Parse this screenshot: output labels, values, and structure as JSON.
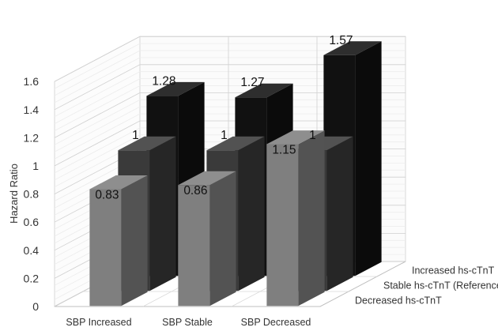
{
  "chart_data": {
    "type": "bar",
    "subtype": "3d-grouped-bar",
    "title": "",
    "xlabel": "",
    "ylabel": "Hazard Ratio",
    "ylim": [
      0,
      1.6
    ],
    "yticks": [
      "0",
      "0.2",
      "0.4",
      "0.6",
      "0.8",
      "1",
      "1.2",
      "1.4",
      "1.6"
    ],
    "grid": true,
    "categories": [
      "SBP Increased",
      "SBP Stable",
      "SBP Decreased"
    ],
    "series": [
      {
        "name": "Decreased hs-cTnT",
        "values": [
          0.83,
          0.86,
          1.15
        ],
        "labels": [
          "0.83",
          "0.86",
          "1.15"
        ],
        "color": "#7f7f7f"
      },
      {
        "name": "Stable hs-cTnT (Reference)",
        "values": [
          1,
          1,
          1
        ],
        "labels": [
          "1",
          "1",
          "1"
        ],
        "color": "#3a3a3a"
      },
      {
        "name": "Increased hs-cTnT",
        "values": [
          1.28,
          1.27,
          1.57
        ],
        "labels": [
          "1.28",
          "1.27",
          "1.57"
        ],
        "color": "#111111"
      }
    ]
  }
}
